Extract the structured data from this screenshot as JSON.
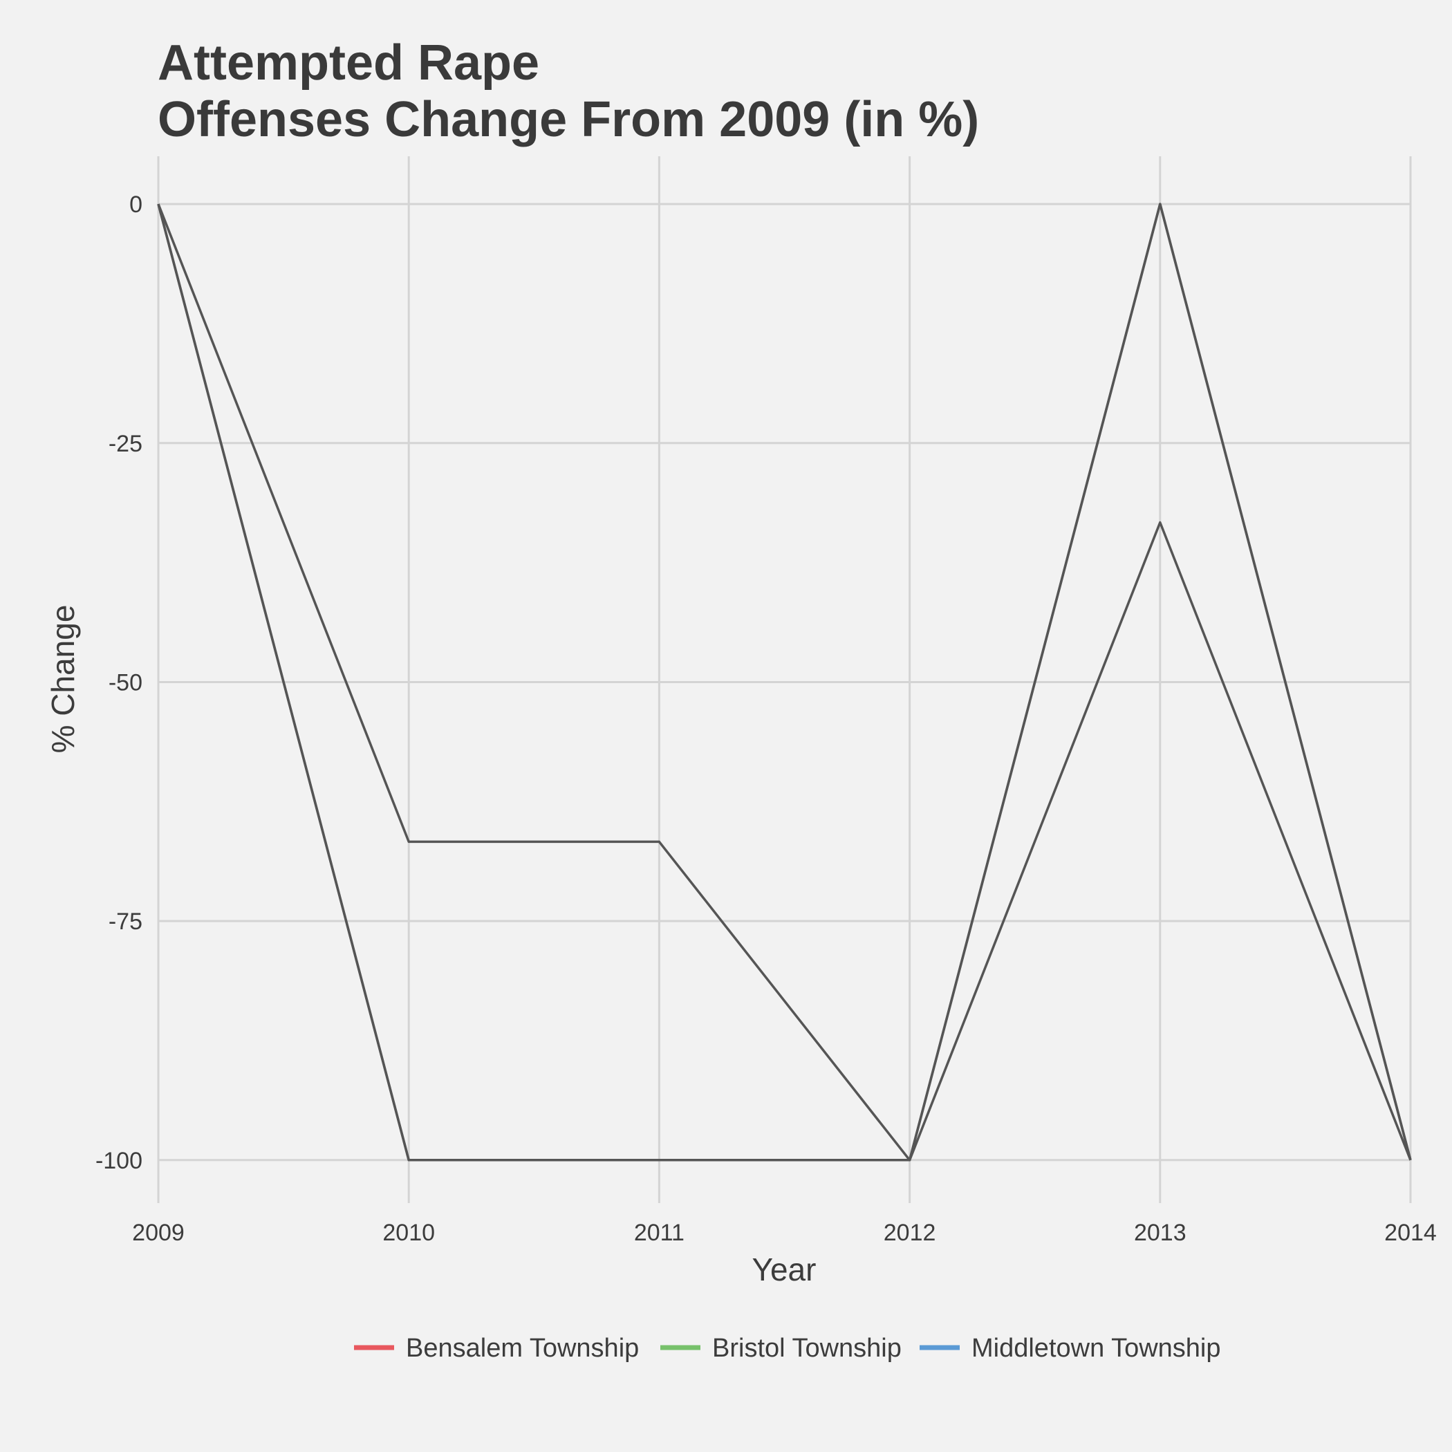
{
  "chart_data": {
    "type": "line",
    "title_line1": "Attempted Rape",
    "title_line2": "Offenses Change From 2009 (in %)",
    "xlabel": "Year",
    "ylabel": "% Change",
    "x": [
      2009,
      2010,
      2011,
      2012,
      2013,
      2014
    ],
    "x_tick_labels": [
      "2009",
      "2010",
      "2011",
      "2012",
      "2013",
      "2014"
    ],
    "y_ticks": [
      0,
      -25,
      -50,
      -75,
      -100
    ],
    "y_tick_labels": [
      "0",
      "-25",
      "-50",
      "-75",
      "-100"
    ],
    "xlim": [
      2009,
      2014
    ],
    "ylim": [
      -104.5,
      5
    ],
    "grid": true,
    "legend_position": "bottom",
    "series": [
      {
        "name": "Bensalem Township",
        "legend_color": "#e8585e",
        "line_color": "#555555",
        "values": [
          0,
          -66.7,
          -66.7,
          -100,
          -33.3,
          -100
        ]
      },
      {
        "name": "Bristol Township",
        "legend_color": "#77c16b",
        "line_color": "#555555",
        "values": [
          0,
          -100,
          -100,
          -100,
          0,
          -100
        ]
      },
      {
        "name": "Middletown Township",
        "legend_color": "#5b9ad5",
        "line_color": "#555555",
        "values": [
          0,
          -100,
          -100,
          -100,
          0,
          -100
        ]
      }
    ]
  }
}
